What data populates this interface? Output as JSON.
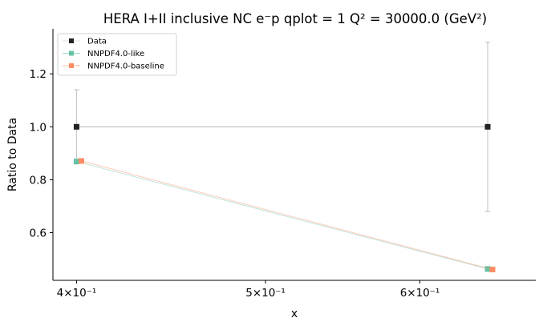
{
  "chart_data": {
    "type": "line",
    "title": "HERA I+II inclusive NC e⁻p qplot = 1 Q² = 30000.0 (GeV²)",
    "xlabel": "x",
    "ylabel": "Ratio to Data",
    "xscale": "log",
    "xlim": [
      0.389,
      0.688
    ],
    "ylim": [
      0.42,
      1.37
    ],
    "x_ticks": [
      {
        "value": 0.4,
        "label": "4×10⁻¹"
      },
      {
        "value": 0.5,
        "label": "5×10⁻¹"
      },
      {
        "value": 0.6,
        "label": "6×10⁻¹"
      }
    ],
    "y_ticks": [
      {
        "value": 0.6,
        "label": "0.6"
      },
      {
        "value": 0.8,
        "label": "0.8"
      },
      {
        "value": 1.0,
        "label": "1.0"
      },
      {
        "value": 1.2,
        "label": "1.2"
      }
    ],
    "grid": false,
    "legend_position": "upper-left",
    "series": [
      {
        "name": "Data",
        "color": "#222222",
        "line_color": "#c8c8c8",
        "x": [
          0.4,
          0.65
        ],
        "values": [
          1.0,
          1.0
        ],
        "err": [
          0.14,
          0.32
        ]
      },
      {
        "name": "NNPDF4.0-like",
        "color": "#66c2a5",
        "x": [
          0.4,
          0.65
        ],
        "values": [
          0.869,
          0.463
        ]
      },
      {
        "name": "NNPDF4.0-baseline",
        "color": "#fc8d62",
        "x": [
          0.4,
          0.65
        ],
        "values": [
          0.871,
          0.461
        ]
      }
    ]
  }
}
